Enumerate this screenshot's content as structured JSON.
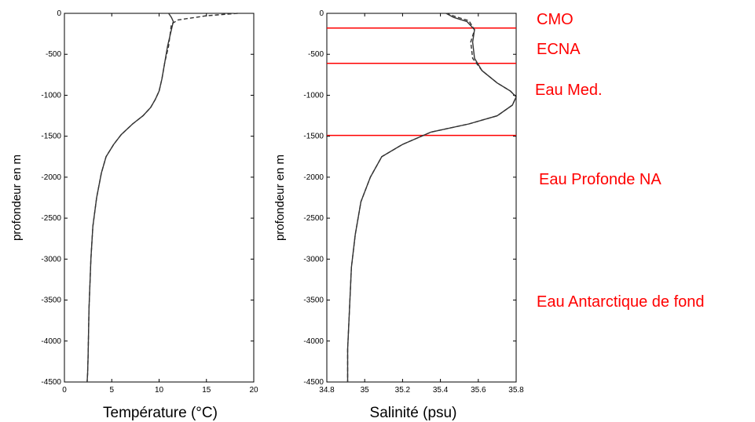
{
  "chart_data": [
    {
      "type": "line",
      "xlabel": "Température (°C)",
      "ylabel": "profondeur en m",
      "xlim": [
        0,
        20
      ],
      "ylim": [
        -4500,
        0
      ],
      "xticks": [
        "0",
        "5",
        "10",
        "15",
        "20"
      ],
      "yticks": [
        "0",
        "-500",
        "-1000",
        "-1500",
        "-2000",
        "-2500",
        "-3000",
        "-3500",
        "-4000",
        "-4500"
      ],
      "grid": false,
      "series": [
        {
          "style": "solid",
          "x": [
            11,
            11.3,
            11.5,
            11.3,
            10.9,
            10.6,
            10.3,
            10.0,
            9.6,
            9.1,
            8.3,
            7.2,
            6.0,
            5.2,
            4.4,
            3.9,
            3.4,
            3.0,
            2.8,
            2.7,
            2.6,
            2.55,
            2.5,
            2.45,
            2.4
          ],
          "y": [
            0,
            -50,
            -100,
            -200,
            -400,
            -600,
            -800,
            -950,
            -1050,
            -1150,
            -1250,
            -1350,
            -1480,
            -1600,
            -1750,
            -1950,
            -2250,
            -2600,
            -3000,
            -3300,
            -3600,
            -3900,
            -4200,
            -4400,
            -4500
          ]
        },
        {
          "style": "dashed",
          "x": [
            18.3,
            15.0,
            12.0,
            11.3,
            11.0,
            10.6,
            10.3,
            10.0,
            9.6,
            9.1,
            8.3,
            7.2,
            6.0,
            5.2,
            4.4,
            3.9,
            3.4,
            3.0,
            2.8,
            2.7,
            2.6,
            2.55,
            2.5,
            2.45,
            2.4
          ],
          "y": [
            0,
            -30,
            -80,
            -130,
            -400,
            -600,
            -800,
            -950,
            -1050,
            -1150,
            -1250,
            -1350,
            -1480,
            -1600,
            -1750,
            -1950,
            -2250,
            -2600,
            -3000,
            -3300,
            -3600,
            -3900,
            -4200,
            -4400,
            -4500
          ]
        }
      ]
    },
    {
      "type": "line",
      "xlabel": "Salinité (psu)",
      "ylabel": "profondeur en m",
      "xlim": [
        34.8,
        35.8
      ],
      "ylim": [
        -4500,
        0
      ],
      "xticks": [
        "34.8",
        "35",
        "35.2",
        "35.4",
        "35.6",
        "35.8"
      ],
      "yticks": [
        "0",
        "-500",
        "-1000",
        "-1500",
        "-2000",
        "-2500",
        "-3000",
        "-3500",
        "-4000",
        "-4500"
      ],
      "grid": false,
      "series": [
        {
          "style": "solid",
          "x": [
            35.43,
            35.47,
            35.54,
            35.58,
            35.57,
            35.58,
            35.62,
            35.7,
            35.77,
            35.8,
            35.78,
            35.7,
            35.55,
            35.35,
            35.2,
            35.09,
            35.03,
            34.98,
            34.95,
            34.93,
            34.92,
            34.91,
            34.91
          ],
          "y": [
            0,
            -50,
            -100,
            -200,
            -350,
            -550,
            -700,
            -850,
            -950,
            -1020,
            -1120,
            -1250,
            -1350,
            -1450,
            -1600,
            -1750,
            -2000,
            -2300,
            -2700,
            -3100,
            -3600,
            -4100,
            -4500
          ]
        },
        {
          "style": "dashed",
          "x": [
            35.43,
            35.48,
            35.55,
            35.58,
            35.56,
            35.57,
            35.62,
            35.7,
            35.77,
            35.8,
            35.78,
            35.7,
            35.55,
            35.35,
            35.2,
            35.09,
            35.03,
            34.98,
            34.95,
            34.93,
            34.92,
            34.91,
            34.91
          ],
          "y": [
            0,
            -40,
            -90,
            -200,
            -350,
            -550,
            -700,
            -850,
            -950,
            -1020,
            -1120,
            -1250,
            -1350,
            -1450,
            -1600,
            -1750,
            -2000,
            -2300,
            -2700,
            -3100,
            -3600,
            -4100,
            -4500
          ]
        }
      ],
      "boundaries": {
        "color": "#ff0000",
        "depths": [
          -180,
          -610,
          -1490
        ]
      },
      "annotations": [
        "CMO",
        "ECNA",
        "Eau Med.",
        "Eau Profonde NA",
        "Eau Antarctique de fond"
      ]
    }
  ],
  "colors": {
    "profile": "#333333",
    "annotation": "#ff0000"
  }
}
